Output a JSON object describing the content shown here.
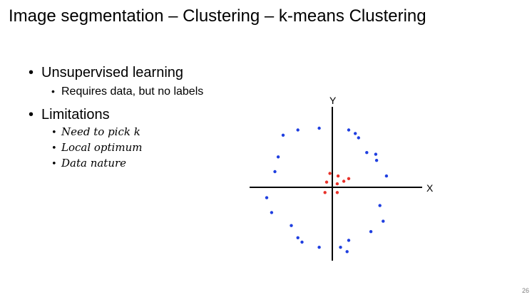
{
  "slide": {
    "title": "Image segmentation – Clustering – k-means Clustering",
    "page_number": "26",
    "bullets": [
      {
        "text": "Unsupervised learning",
        "children": [
          {
            "text": "Requires data, but no labels"
          }
        ]
      },
      {
        "text": "Limitations",
        "children": [
          {
            "text": "Need to pick k"
          },
          {
            "text": "Local optimum"
          },
          {
            "text": "Data nature"
          }
        ]
      }
    ]
  },
  "chart_data": {
    "type": "scatter",
    "xlabel": "X",
    "ylabel": "Y",
    "xlim": [
      -100,
      100
    ],
    "ylim": [
      -100,
      100
    ],
    "grid": false,
    "axes_through_origin": true,
    "series": [
      {
        "color": "#1f3fe0",
        "points": [
          [
            -60,
            60
          ],
          [
            -42,
            66
          ],
          [
            -16,
            68
          ],
          [
            20,
            66
          ],
          [
            28,
            62
          ],
          [
            32,
            57
          ],
          [
            -66,
            35
          ],
          [
            -70,
            18
          ],
          [
            -80,
            -12
          ],
          [
            -74,
            -29
          ],
          [
            -50,
            -44
          ],
          [
            -42,
            -58
          ],
          [
            -37,
            -63
          ],
          [
            -16,
            -69
          ],
          [
            42,
            40
          ],
          [
            53,
            38
          ],
          [
            54,
            31
          ],
          [
            66,
            13
          ],
          [
            58,
            -21
          ],
          [
            62,
            -39
          ],
          [
            47,
            -51
          ],
          [
            10,
            -69
          ],
          [
            18,
            -74
          ],
          [
            20,
            -61
          ]
        ]
      },
      {
        "color": "#e8322a",
        "points": [
          [
            -3,
            16
          ],
          [
            7,
            13
          ],
          [
            20,
            10
          ],
          [
            14,
            7
          ],
          [
            -7,
            6
          ],
          [
            6,
            4
          ],
          [
            -9,
            -6
          ],
          [
            6,
            -6
          ]
        ]
      }
    ]
  }
}
